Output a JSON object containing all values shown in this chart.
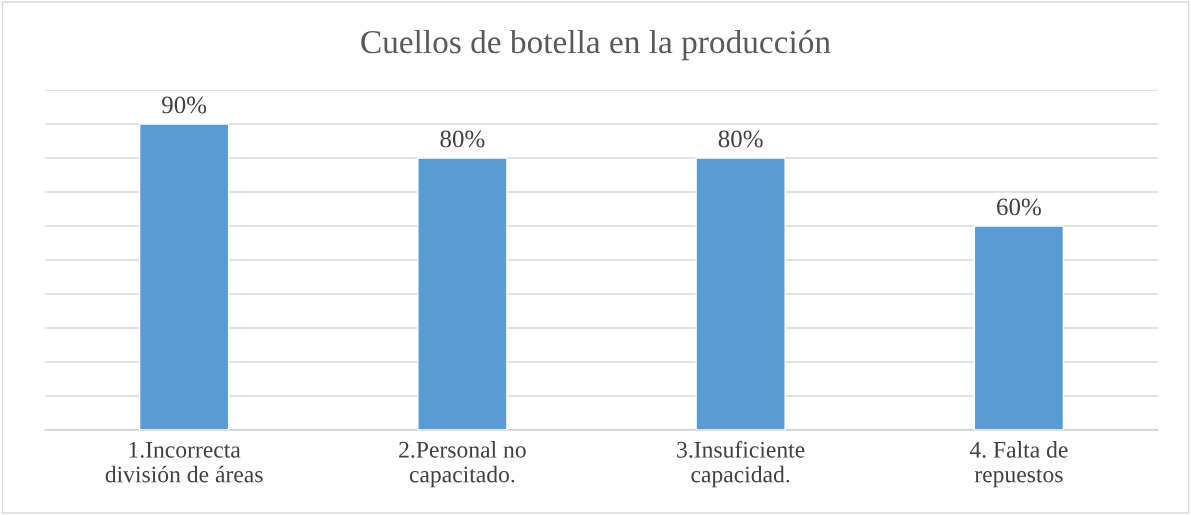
{
  "chart_data": {
    "type": "bar",
    "title": "Cuellos de botella en la producción",
    "categories": [
      "1.Incorrecta\ndivisión de áreas",
      "2.Personal no\ncapacitado.",
      "3.Insuficiente\ncapacidad.",
      "4. Falta de\nrepuestos"
    ],
    "values": [
      90,
      80,
      80,
      60
    ],
    "color": "#5b9bd5",
    "value_labels": [
      "90%",
      "80%",
      "80%",
      "60%"
    ],
    "ylim": [
      0,
      100
    ],
    "yticks": [
      {
        "value": 0,
        "label": null
      },
      {
        "value": 10,
        "label": null
      },
      {
        "value": 20,
        "label": null
      },
      {
        "value": 30,
        "label": null
      },
      {
        "value": 40,
        "label": null
      },
      {
        "value": 50,
        "label": null
      },
      {
        "value": 60,
        "label": null
      },
      {
        "value": 70,
        "label": null
      },
      {
        "value": 80,
        "label": null
      },
      {
        "value": 90,
        "label": null
      },
      {
        "value": 100,
        "label": null
      }
    ],
    "grid": "y",
    "tick_labels": "x"
  }
}
